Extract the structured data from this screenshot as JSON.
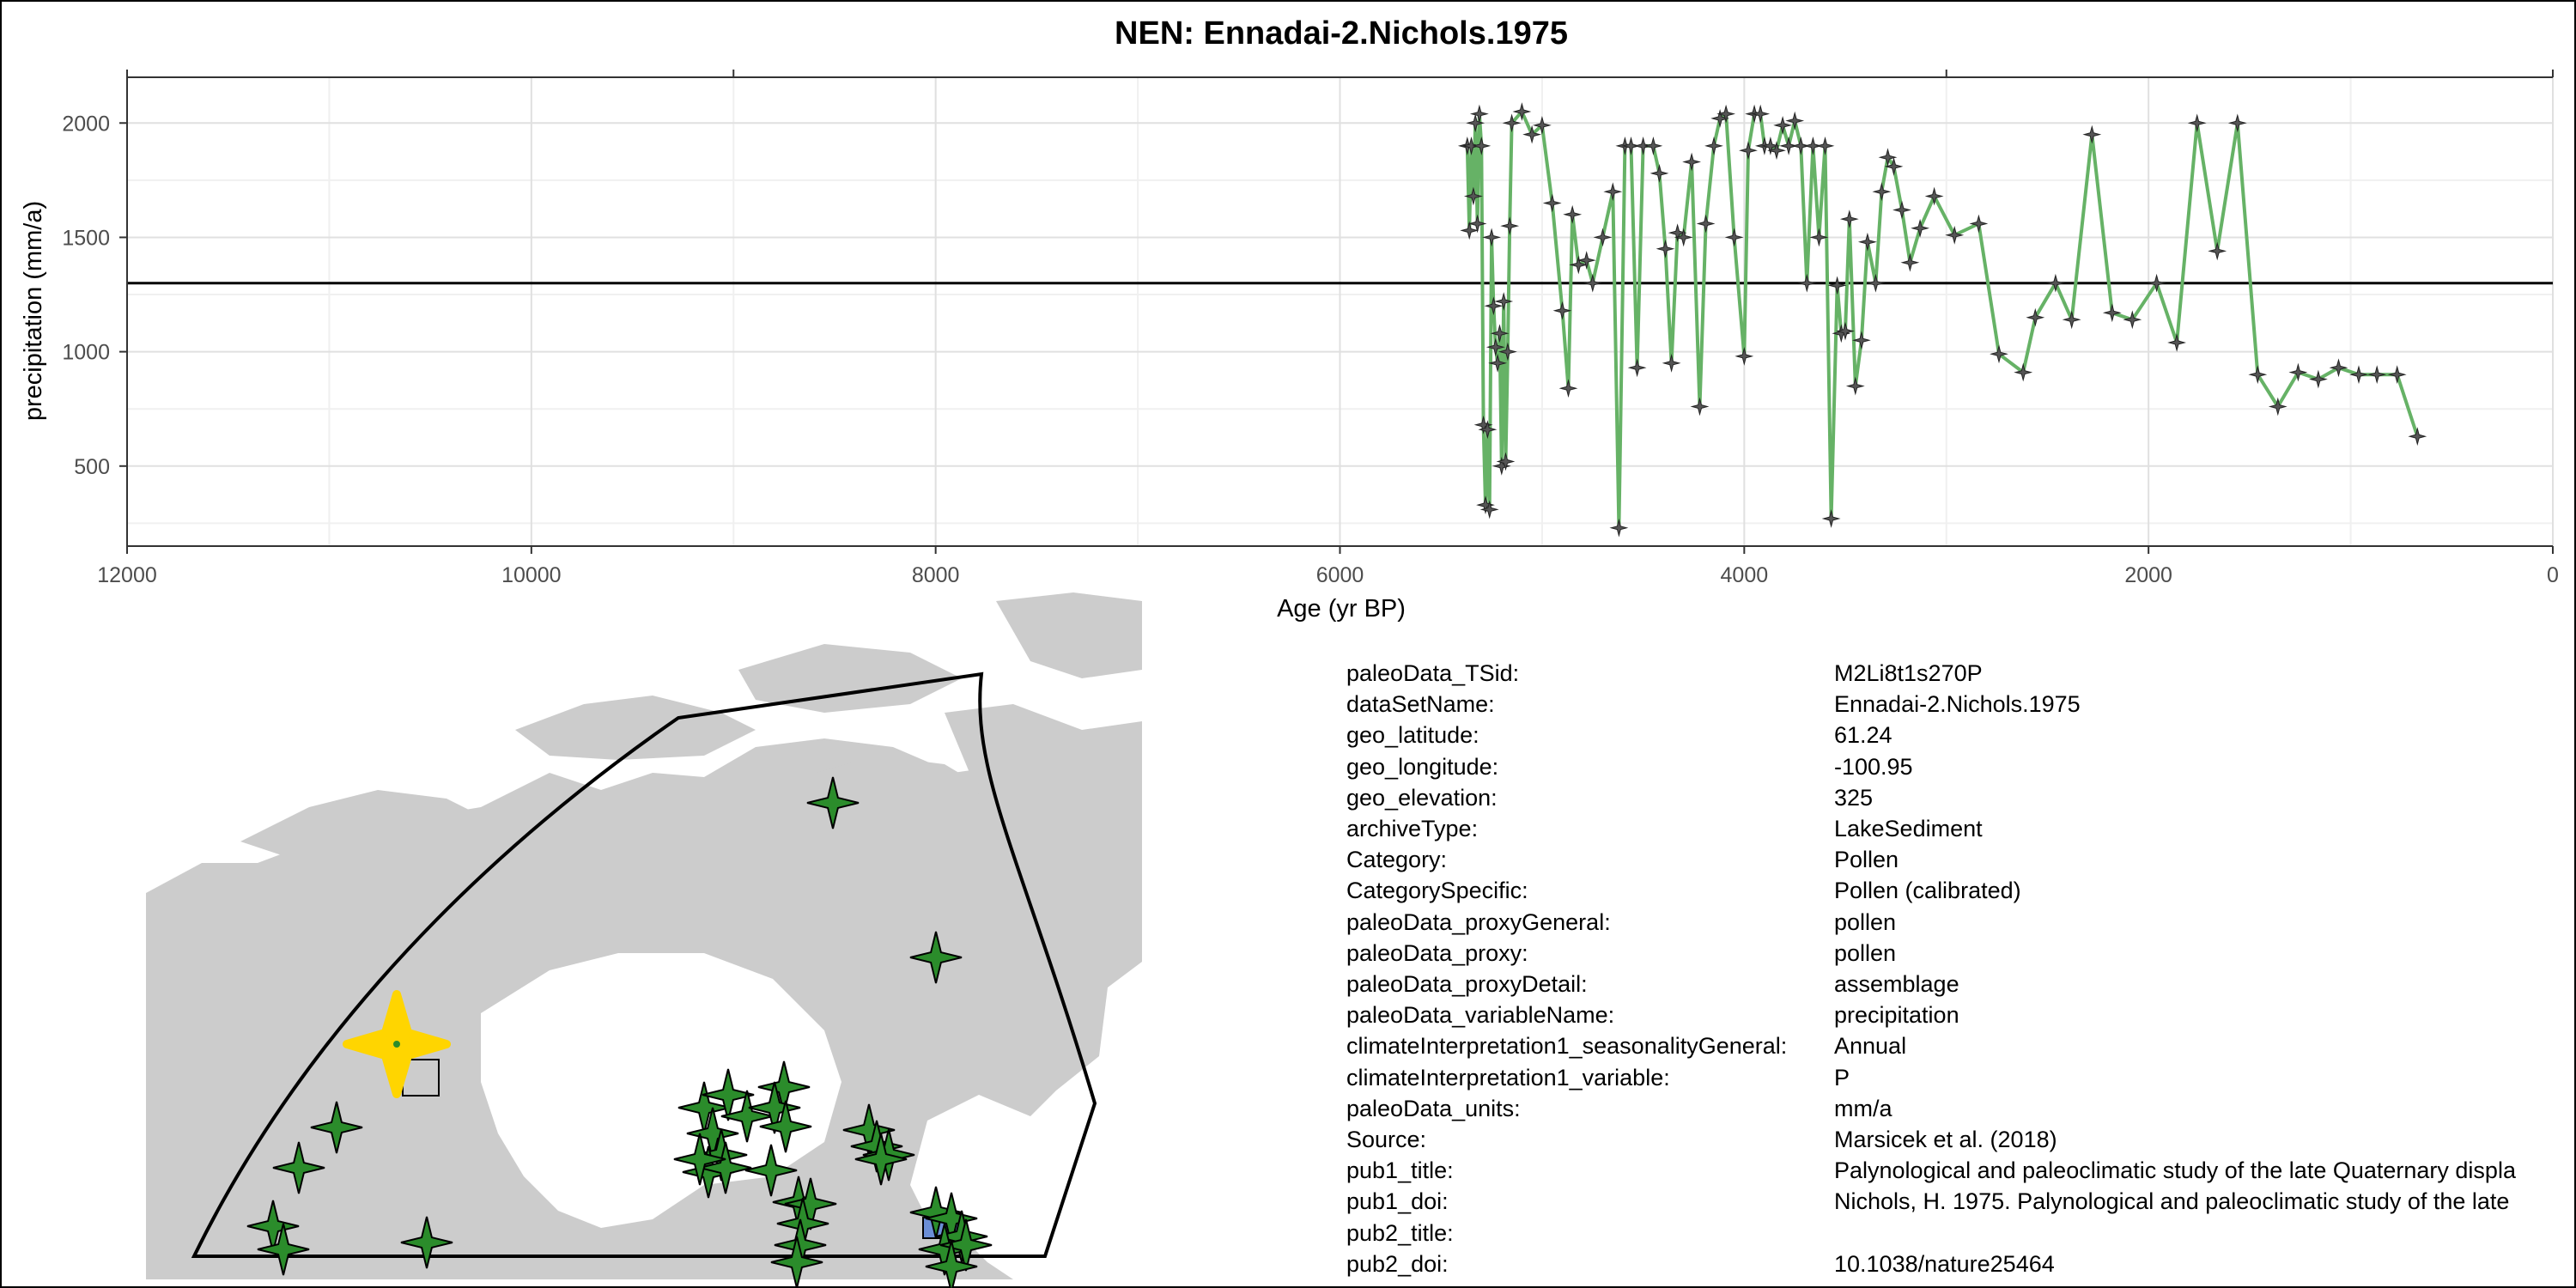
{
  "chart_data": {
    "type": "line",
    "title": "NEN: Ennadai-2.Nichols.1975",
    "xlabel": "Age (yr BP)",
    "ylabel": "precipitation (mm/a)",
    "xlim": [
      12000,
      0
    ],
    "x_reversed": true,
    "ylim": [
      150,
      2200
    ],
    "x_ticks": [
      12000,
      10000,
      8000,
      6000,
      4000,
      2000,
      0
    ],
    "x_tick_labels": [
      "12000",
      "10000",
      "8000",
      "6000",
      "4000",
      "2000",
      "0"
    ],
    "top_ticks": [
      12000,
      9000,
      3000,
      0
    ],
    "y_ticks": [
      500,
      1000,
      1500,
      2000
    ],
    "y_tick_labels": [
      "500",
      "1000",
      "1500",
      "2000"
    ],
    "reference_line_y": 1300,
    "grid": true,
    "line_color": "#66b266",
    "marker": "four-point-star",
    "marker_color": "#555555",
    "reference_color": "#000000",
    "series": [
      {
        "x": [
          5370,
          5360,
          5350,
          5340,
          5330,
          5320,
          5310,
          5300,
          5290,
          5280,
          5270,
          5260,
          5250,
          5240,
          5230,
          5220,
          5210,
          5200,
          5190,
          5180,
          5170,
          5160,
          5150,
          5100,
          5050,
          5000,
          4950,
          4900,
          4870,
          4850,
          4820,
          4780,
          4750,
          4700,
          4650,
          4620,
          4590,
          4560,
          4530,
          4500,
          4450,
          4420,
          4390,
          4360,
          4330,
          4300,
          4260,
          4220,
          4190,
          4150,
          4120,
          4090,
          4050,
          4000,
          3980,
          3950,
          3920,
          3900,
          3870,
          3840,
          3810,
          3780,
          3750,
          3720,
          3690,
          3660,
          3630,
          3600,
          3570,
          3540,
          3520,
          3500,
          3480,
          3450,
          3420,
          3390,
          3350,
          3320,
          3290,
          3260,
          3220,
          3180,
          3130,
          3060,
          2960,
          2840,
          2740,
          2620,
          2560,
          2460,
          2380,
          2280,
          2180,
          2080,
          1960,
          1860,
          1760,
          1660,
          1560,
          1460,
          1360,
          1260,
          1160,
          1060,
          960,
          870,
          770,
          670
        ],
        "y": [
          1900,
          1530,
          1900,
          1680,
          2000,
          1560,
          2040,
          1900,
          680,
          330,
          660,
          310,
          1500,
          1200,
          1020,
          950,
          1080,
          500,
          1220,
          520,
          1000,
          1550,
          2000,
          2050,
          1950,
          1990,
          1650,
          1180,
          840,
          1600,
          1380,
          1400,
          1300,
          1500,
          1700,
          230,
          1900,
          1900,
          930,
          1900,
          1900,
          1780,
          1450,
          950,
          1520,
          1500,
          1830,
          760,
          1560,
          1900,
          2020,
          2040,
          1500,
          980,
          1880,
          2040,
          2040,
          1900,
          1900,
          1880,
          1990,
          1900,
          2010,
          1900,
          1300,
          1900,
          1500,
          1900,
          270,
          1290,
          1080,
          1090,
          1580,
          850,
          1050,
          1480,
          1300,
          1700,
          1850,
          1810,
          1620,
          1390,
          1540,
          1680,
          1510,
          1560,
          990,
          910,
          1150,
          1300,
          1140,
          1950,
          1170,
          1140,
          1300,
          1040,
          2000,
          1440,
          2000,
          900,
          760,
          910,
          880,
          930,
          900,
          900,
          900,
          630
        ]
      }
    ]
  },
  "map": {
    "land_color": "#cccccc",
    "site_color": "#2b8c2b",
    "highlight_color": "#ffd500",
    "box_color": "#6b8ed6"
  },
  "metadata": [
    {
      "key": "paleoData_TSid:",
      "value": "M2Li8t1s270P"
    },
    {
      "key": "dataSetName:",
      "value": "Ennadai-2.Nichols.1975"
    },
    {
      "key": "geo_latitude:",
      "value": "61.24"
    },
    {
      "key": "geo_longitude:",
      "value": "-100.95"
    },
    {
      "key": "geo_elevation:",
      "value": "325"
    },
    {
      "key": "archiveType:",
      "value": "LakeSediment"
    },
    {
      "key": "Category:",
      "value": "Pollen"
    },
    {
      "key": "CategorySpecific:",
      "value": "Pollen (calibrated)"
    },
    {
      "key": "paleoData_proxyGeneral:",
      "value": "pollen"
    },
    {
      "key": "paleoData_proxy:",
      "value": "pollen"
    },
    {
      "key": "paleoData_proxyDetail:",
      "value": "assemblage"
    },
    {
      "key": "paleoData_variableName:",
      "value": "precipitation"
    },
    {
      "key": "climateInterpretation1_seasonalityGeneral:",
      "value": "Annual"
    },
    {
      "key": "climateInterpretation1_variable:",
      "value": "P"
    },
    {
      "key": "paleoData_units:",
      "value": "mm/a"
    },
    {
      "key": "Source:",
      "value": "Marsicek et al. (2018)"
    },
    {
      "key": "pub1_title:",
      "value": "Palynological and paleoclimatic study of the late Quaternary displa"
    },
    {
      "key": "pub1_doi:",
      "value": "Nichols, H. 1975. Palynological and paleoclimatic study of the late"
    },
    {
      "key": "pub2_title:",
      "value": ""
    },
    {
      "key": "pub2_doi:",
      "value": "10.1038/nature25464"
    }
  ]
}
